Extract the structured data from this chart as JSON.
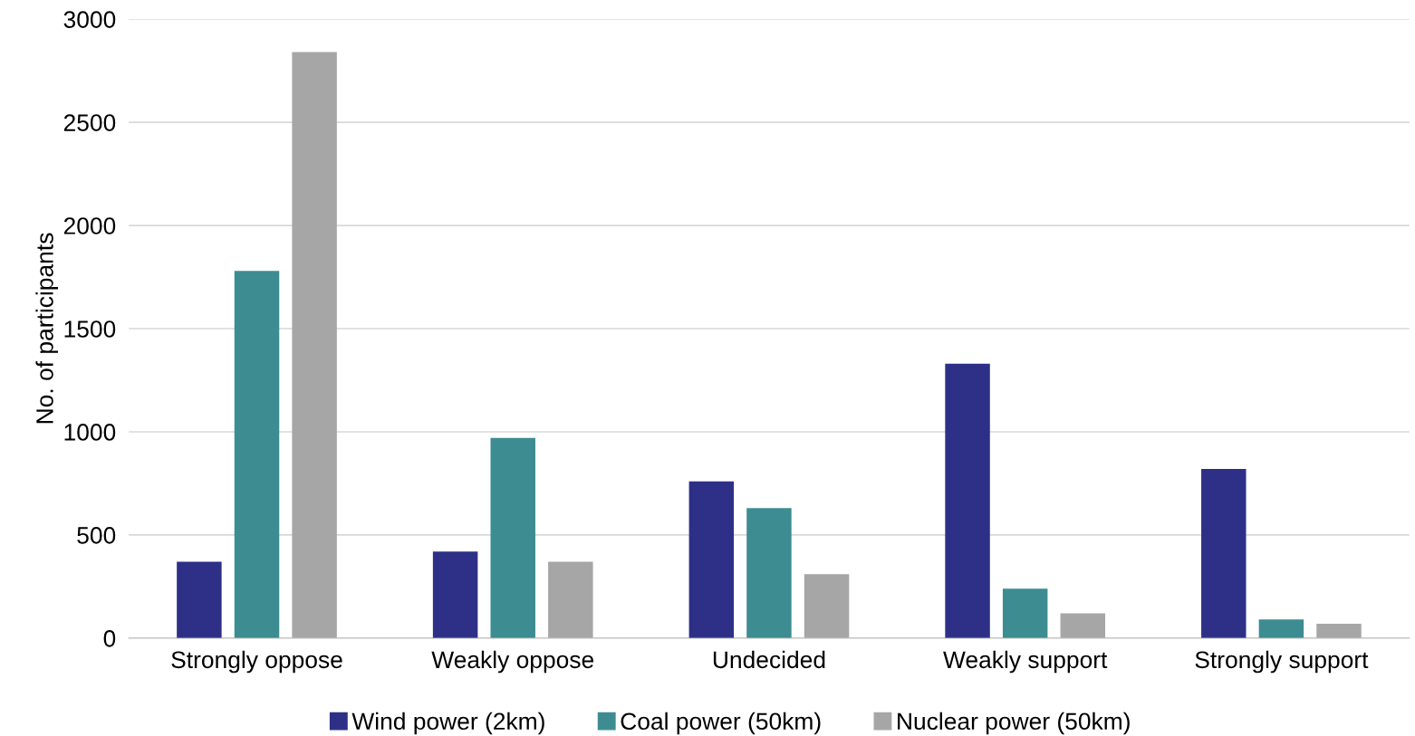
{
  "chart_data": {
    "type": "bar",
    "ylabel": "No. of participants",
    "categories": [
      "Strongly oppose",
      "Weakly oppose",
      "Undecided",
      "Weakly support",
      "Strongly support"
    ],
    "series": [
      {
        "name": "Wind power (2km)",
        "color": "#2e3087",
        "values": [
          370,
          420,
          760,
          1330,
          820
        ]
      },
      {
        "name": "Coal power (50km)",
        "color": "#3d8c91",
        "values": [
          1780,
          970,
          630,
          240,
          90
        ]
      },
      {
        "name": "Nuclear power (50km)",
        "color": "#a6a6a6",
        "values": [
          2840,
          370,
          310,
          120,
          70
        ]
      }
    ],
    "ylim": [
      0,
      3000
    ],
    "yticks": [
      0,
      500,
      1000,
      1500,
      2000,
      2500,
      3000
    ],
    "grid": "y",
    "legend": "bottom"
  }
}
